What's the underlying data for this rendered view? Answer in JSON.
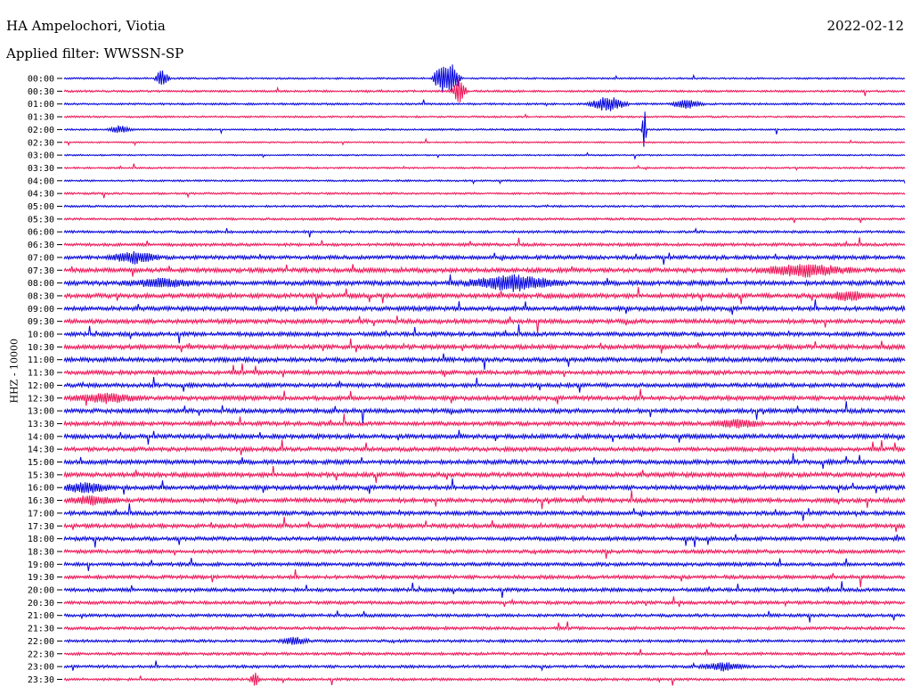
{
  "header": {
    "station": "HA Ampelochori, Viotia",
    "filter": "Applied filter: WWSSN-SP",
    "date": "2022-02-12"
  },
  "colors": {
    "even_trace": "#0000dd",
    "odd_trace": "#ee1155",
    "background": "#ffffff"
  },
  "chart_data": {
    "type": "line",
    "title": "HA Ampelochori, Viotia",
    "subtitle": "Applied filter: WWSSN-SP",
    "ylabel": "HHZ - 10000",
    "xlabel": "",
    "categories": [
      "00:00",
      "00:30",
      "01:00",
      "01:30",
      "02:00",
      "02:30",
      "03:00",
      "03:30",
      "04:00",
      "04:30",
      "05:00",
      "05:30",
      "06:00",
      "06:30",
      "07:00",
      "07:30",
      "08:00",
      "08:30",
      "09:00",
      "09:30",
      "10:00",
      "10:30",
      "11:00",
      "11:30",
      "12:00",
      "12:30",
      "13:00",
      "13:30",
      "14:00",
      "14:30",
      "15:00",
      "15:30",
      "16:00",
      "16:30",
      "17:00",
      "17:30",
      "18:00",
      "18:30",
      "19:00",
      "19:30",
      "20:00",
      "20:30",
      "21:00",
      "21:30",
      "22:00",
      "22:30",
      "23:00",
      "23:30"
    ],
    "trace_colors": [
      "#0000dd",
      "#ee1155"
    ],
    "noise_levels": [
      0.35,
      0.4,
      0.4,
      0.35,
      0.35,
      0.3,
      0.3,
      0.35,
      0.35,
      0.4,
      0.4,
      0.45,
      0.5,
      0.6,
      0.75,
      0.85,
      0.9,
      0.9,
      0.85,
      0.85,
      0.8,
      0.85,
      0.85,
      0.8,
      0.8,
      0.85,
      0.85,
      0.8,
      0.85,
      0.8,
      0.85,
      0.9,
      0.85,
      0.85,
      0.8,
      0.8,
      0.75,
      0.7,
      0.7,
      0.7,
      0.7,
      0.65,
      0.6,
      0.6,
      0.55,
      0.55,
      0.55,
      0.5
    ],
    "events": [
      {
        "row": 0,
        "minute": 3.5,
        "amplitude": 5,
        "duration": 0.3
      },
      {
        "row": 0,
        "minute": 13.5,
        "amplitude": 9,
        "duration": 0.4
      },
      {
        "row": 0,
        "minute": 13.9,
        "amplitude": 8,
        "duration": 0.3
      },
      {
        "row": 1,
        "minute": 14.1,
        "amplitude": 7,
        "duration": 0.3
      },
      {
        "row": 2,
        "minute": 19.4,
        "amplitude": 4,
        "duration": 0.8
      },
      {
        "row": 2,
        "minute": 22.2,
        "amplitude": 3,
        "duration": 0.6
      },
      {
        "row": 4,
        "minute": 20.7,
        "amplitude": 12,
        "duration": 0.1
      },
      {
        "row": 4,
        "minute": 2.0,
        "amplitude": 2,
        "duration": 0.5
      },
      {
        "row": 14,
        "minute": 2.5,
        "amplitude": 3,
        "duration": 1.0
      },
      {
        "row": 15,
        "minute": 26.5,
        "amplitude": 3,
        "duration": 2.0
      },
      {
        "row": 16,
        "minute": 16.0,
        "amplitude": 4,
        "duration": 2.0
      },
      {
        "row": 16,
        "minute": 3.5,
        "amplitude": 2,
        "duration": 1.5
      },
      {
        "row": 17,
        "minute": 28.0,
        "amplitude": 2,
        "duration": 1.0
      },
      {
        "row": 25,
        "minute": 1.5,
        "amplitude": 2,
        "duration": 1.5
      },
      {
        "row": 27,
        "minute": 24.0,
        "amplitude": 2,
        "duration": 1.0
      },
      {
        "row": 32,
        "minute": 0.8,
        "amplitude": 2.5,
        "duration": 1.0
      },
      {
        "row": 33,
        "minute": 1.0,
        "amplitude": 2,
        "duration": 1.0
      },
      {
        "row": 44,
        "minute": 8.2,
        "amplitude": 2,
        "duration": 0.6
      },
      {
        "row": 46,
        "minute": 23.5,
        "amplitude": 2,
        "duration": 1.0
      },
      {
        "row": 47,
        "minute": 6.8,
        "amplitude": 4,
        "duration": 0.2
      }
    ]
  }
}
